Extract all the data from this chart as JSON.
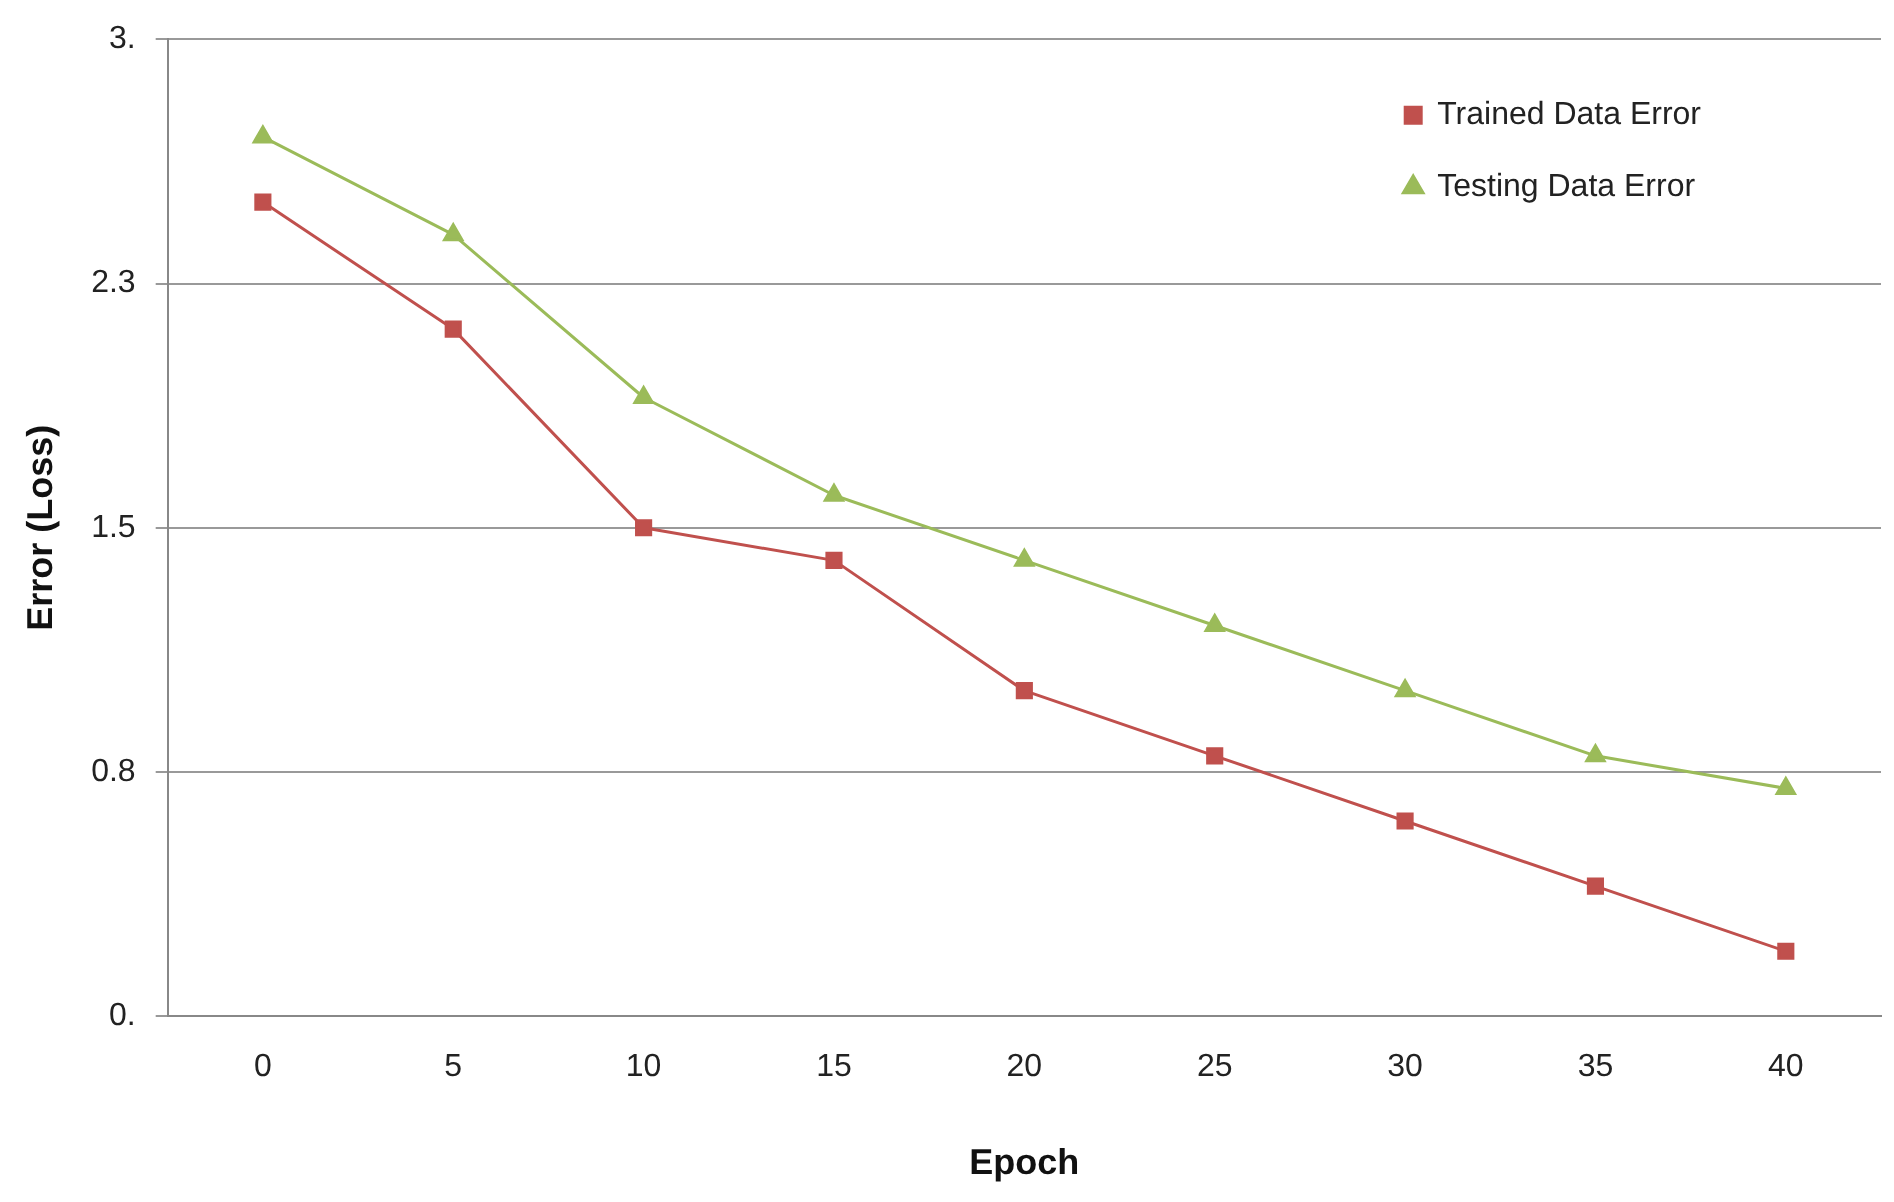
{
  "chart_data": {
    "type": "line",
    "xlabel": "Epoch",
    "ylabel": "Error (Loss)",
    "categories": [
      "0",
      "5",
      "10",
      "15",
      "20",
      "25",
      "30",
      "35",
      "40"
    ],
    "series": [
      {
        "name": "Trained Data Error",
        "color": "#c0504d",
        "marker": "square",
        "values": [
          2.5,
          2.11,
          1.5,
          1.4,
          1.0,
          0.8,
          0.6,
          0.4,
          0.2
        ]
      },
      {
        "name": "Testing Data Error",
        "color": "#9bbb59",
        "marker": "triangle",
        "values": [
          2.7,
          2.4,
          1.9,
          1.6,
          1.4,
          1.2,
          1.0,
          0.8,
          0.7
        ]
      }
    ],
    "ylim": [
      0,
      3
    ],
    "yticks": [
      {
        "value": 0,
        "label": "0."
      },
      {
        "value": 0.75,
        "label": "0.8"
      },
      {
        "value": 1.5,
        "label": "1.5"
      },
      {
        "value": 2.25,
        "label": "2.3"
      },
      {
        "value": 3,
        "label": "3."
      }
    ],
    "grid": "y",
    "legend": "top right"
  }
}
